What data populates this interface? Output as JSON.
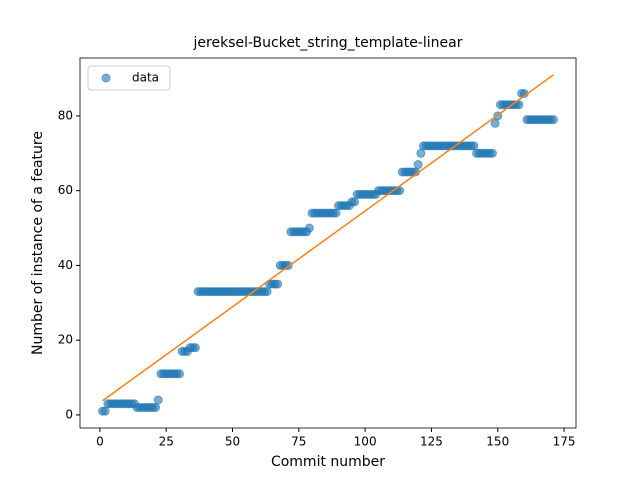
{
  "chart_data": {
    "type": "scatter",
    "title": "jereksel-Bucket_string_template-linear",
    "x_label": "Commit number",
    "y_label": "Number of instance of a feature",
    "xlim": [
      -7.5,
      179.5
    ],
    "ylim": [
      -3.5,
      95.5
    ],
    "xticks": [
      0,
      25,
      50,
      75,
      100,
      125,
      150,
      175
    ],
    "yticks": [
      0,
      20,
      40,
      60,
      80
    ],
    "legend": "upper left",
    "series": [
      {
        "name": "data",
        "color": "#1f77b4",
        "x": [
          1,
          2,
          3,
          4,
          5,
          6,
          7,
          8,
          9,
          10,
          11,
          12,
          13,
          14,
          15,
          16,
          17,
          18,
          19,
          20,
          21,
          22,
          23,
          24,
          25,
          26,
          27,
          28,
          29,
          30,
          31,
          32,
          33,
          34,
          35,
          36,
          37,
          38,
          39,
          40,
          41,
          42,
          43,
          44,
          45,
          46,
          47,
          48,
          49,
          50,
          51,
          52,
          53,
          54,
          55,
          56,
          57,
          58,
          59,
          60,
          61,
          62,
          63,
          64,
          65,
          66,
          67,
          68,
          69,
          70,
          71,
          72,
          73,
          74,
          75,
          76,
          77,
          78,
          79,
          80,
          81,
          82,
          83,
          84,
          85,
          86,
          87,
          88,
          89,
          90,
          91,
          92,
          93,
          94,
          95,
          96,
          97,
          98,
          99,
          100,
          101,
          102,
          103,
          104,
          105,
          106,
          107,
          108,
          109,
          110,
          111,
          112,
          113,
          114,
          115,
          116,
          117,
          118,
          119,
          120,
          121,
          122,
          123,
          124,
          125,
          126,
          127,
          128,
          129,
          130,
          131,
          132,
          133,
          134,
          135,
          136,
          137,
          138,
          139,
          140,
          141,
          142,
          143,
          144,
          145,
          146,
          147,
          148,
          149,
          150,
          151,
          152,
          153,
          154,
          155,
          156,
          157,
          158,
          159,
          160,
          161,
          162,
          163,
          164,
          165,
          166,
          167,
          168,
          169,
          170,
          171
        ],
        "values": [
          1,
          1,
          3,
          3,
          3,
          3,
          3,
          3,
          3,
          3,
          3,
          3,
          3,
          2,
          2,
          2,
          2,
          2,
          2,
          2,
          2,
          4,
          11,
          11,
          11,
          11,
          11,
          11,
          11,
          11,
          17,
          17,
          17,
          18,
          18,
          18,
          33,
          33,
          33,
          33,
          33,
          33,
          33,
          33,
          33,
          33,
          33,
          33,
          33,
          33,
          33,
          33,
          33,
          33,
          33,
          33,
          33,
          33,
          33,
          33,
          33,
          33,
          33,
          35,
          35,
          35,
          35,
          40,
          40,
          40,
          40,
          49,
          49,
          49,
          49,
          49,
          49,
          49,
          50,
          54,
          54,
          54,
          54,
          54,
          54,
          54,
          54,
          54,
          54,
          56,
          56,
          56,
          56,
          56,
          57,
          57,
          59,
          59,
          59,
          59,
          59,
          59,
          59,
          59,
          60,
          60,
          60,
          60,
          60,
          60,
          60,
          60,
          60,
          65,
          65,
          65,
          65,
          65,
          65,
          67,
          70,
          72,
          72,
          72,
          72,
          72,
          72,
          72,
          72,
          72,
          72,
          72,
          72,
          72,
          72,
          72,
          72,
          72,
          72,
          72,
          72,
          70,
          70,
          70,
          70,
          70,
          70,
          70,
          78,
          80,
          83,
          83,
          83,
          83,
          83,
          83,
          83,
          83,
          86,
          86,
          79,
          79,
          79,
          79,
          79,
          79,
          79,
          79,
          79,
          79,
          79
        ]
      },
      {
        "color": "#ff7f0e",
        "x": [
          1,
          171
        ],
        "values": [
          3.8,
          91
        ]
      }
    ]
  }
}
